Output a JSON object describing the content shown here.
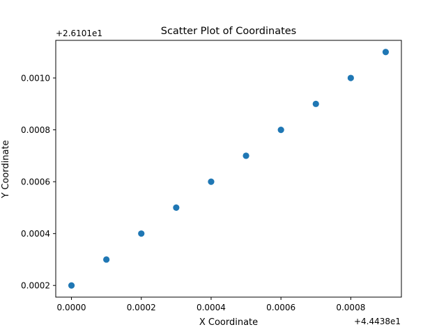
{
  "chart_data": {
    "type": "scatter",
    "title": "Scatter Plot of Coordinates",
    "xlabel": "X Coordinate",
    "ylabel": "Y Coordinate",
    "x_offset_label": "+4.4438e1",
    "y_offset_label": "+2.6101e1",
    "x_ticks": [
      "0.0000",
      "0.0002",
      "0.0004",
      "0.0006",
      "0.0008"
    ],
    "y_ticks": [
      "0.0002",
      "0.0004",
      "0.0006",
      "0.0008",
      "0.0010"
    ],
    "x_tick_values": [
      0.0,
      0.0002,
      0.0004,
      0.0006,
      0.0008
    ],
    "y_tick_values": [
      0.0002,
      0.0004,
      0.0006,
      0.0008,
      0.001
    ],
    "xlim": [
      -4.5e-05,
      0.000945
    ],
    "ylim": [
      0.000155,
      0.001145
    ],
    "grid": false,
    "marker_color": "#1f77b4",
    "points": [
      {
        "x": 0.0,
        "y": 0.0002
      },
      {
        "x": 0.0001,
        "y": 0.0003
      },
      {
        "x": 0.0002,
        "y": 0.0004
      },
      {
        "x": 0.0003,
        "y": 0.0005
      },
      {
        "x": 0.0004,
        "y": 0.0006
      },
      {
        "x": 0.0005,
        "y": 0.0007
      },
      {
        "x": 0.0006,
        "y": 0.0008
      },
      {
        "x": 0.0007,
        "y": 0.0009
      },
      {
        "x": 0.0008,
        "y": 0.001
      },
      {
        "x": 0.0009,
        "y": 0.0011
      }
    ]
  }
}
